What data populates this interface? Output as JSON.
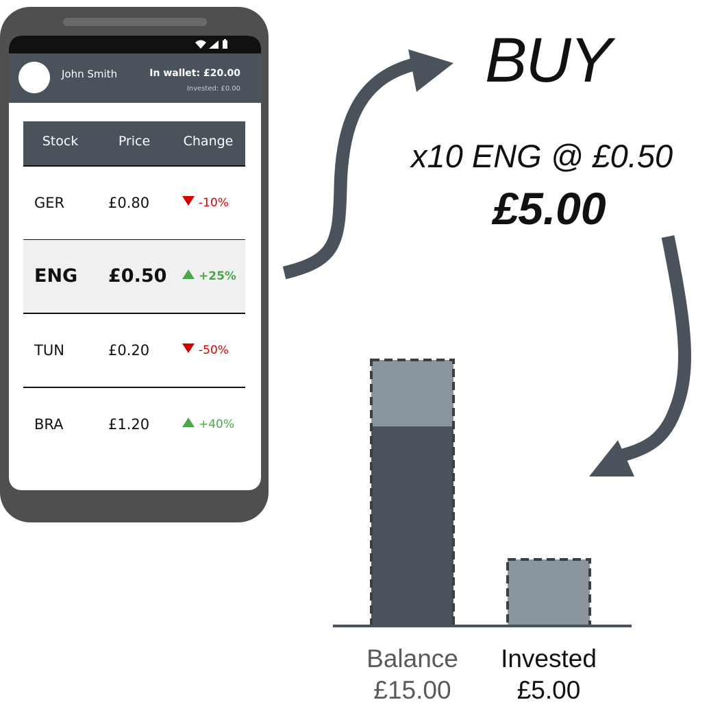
{
  "phone": {
    "user_name": "John Smith",
    "wallet": "In wallet: £20.00",
    "invested": "Invested: £0.00",
    "table": {
      "headers": [
        "Stock",
        "Price",
        "Change"
      ],
      "rows": [
        {
          "stock": "GER",
          "price": "£0.80",
          "change": "-10%",
          "direction": "down"
        },
        {
          "stock": "ENG",
          "price": "£0.50",
          "change": "+25%",
          "direction": "up",
          "selected": true
        },
        {
          "stock": "TUN",
          "price": "£0.20",
          "change": "-50%",
          "direction": "down"
        },
        {
          "stock": "BRA",
          "price": "£1.20",
          "change": "+40%",
          "direction": "up"
        }
      ]
    }
  },
  "trade": {
    "action": "BUY",
    "order": "x10 ENG @ £0.50",
    "total": "£5.00"
  },
  "chart_data": {
    "type": "bar",
    "categories": [
      "Balance",
      "Invested"
    ],
    "values": [
      15,
      5
    ],
    "previous_values": [
      20,
      0
    ],
    "value_labels": [
      "£15.00",
      "£5.00"
    ],
    "ylim": [
      0,
      20
    ]
  },
  "colors": {
    "phone_body": "#4f4f4f",
    "app_bar": "#4a535b",
    "bar_solid": "#4a535b",
    "bar_change": "#8a959d",
    "arrow": "#4a535b",
    "down": "#d40000",
    "up": "#4aa84a"
  },
  "icons": [
    "wifi-icon",
    "signal-icon",
    "battery-icon",
    "avatar"
  ]
}
